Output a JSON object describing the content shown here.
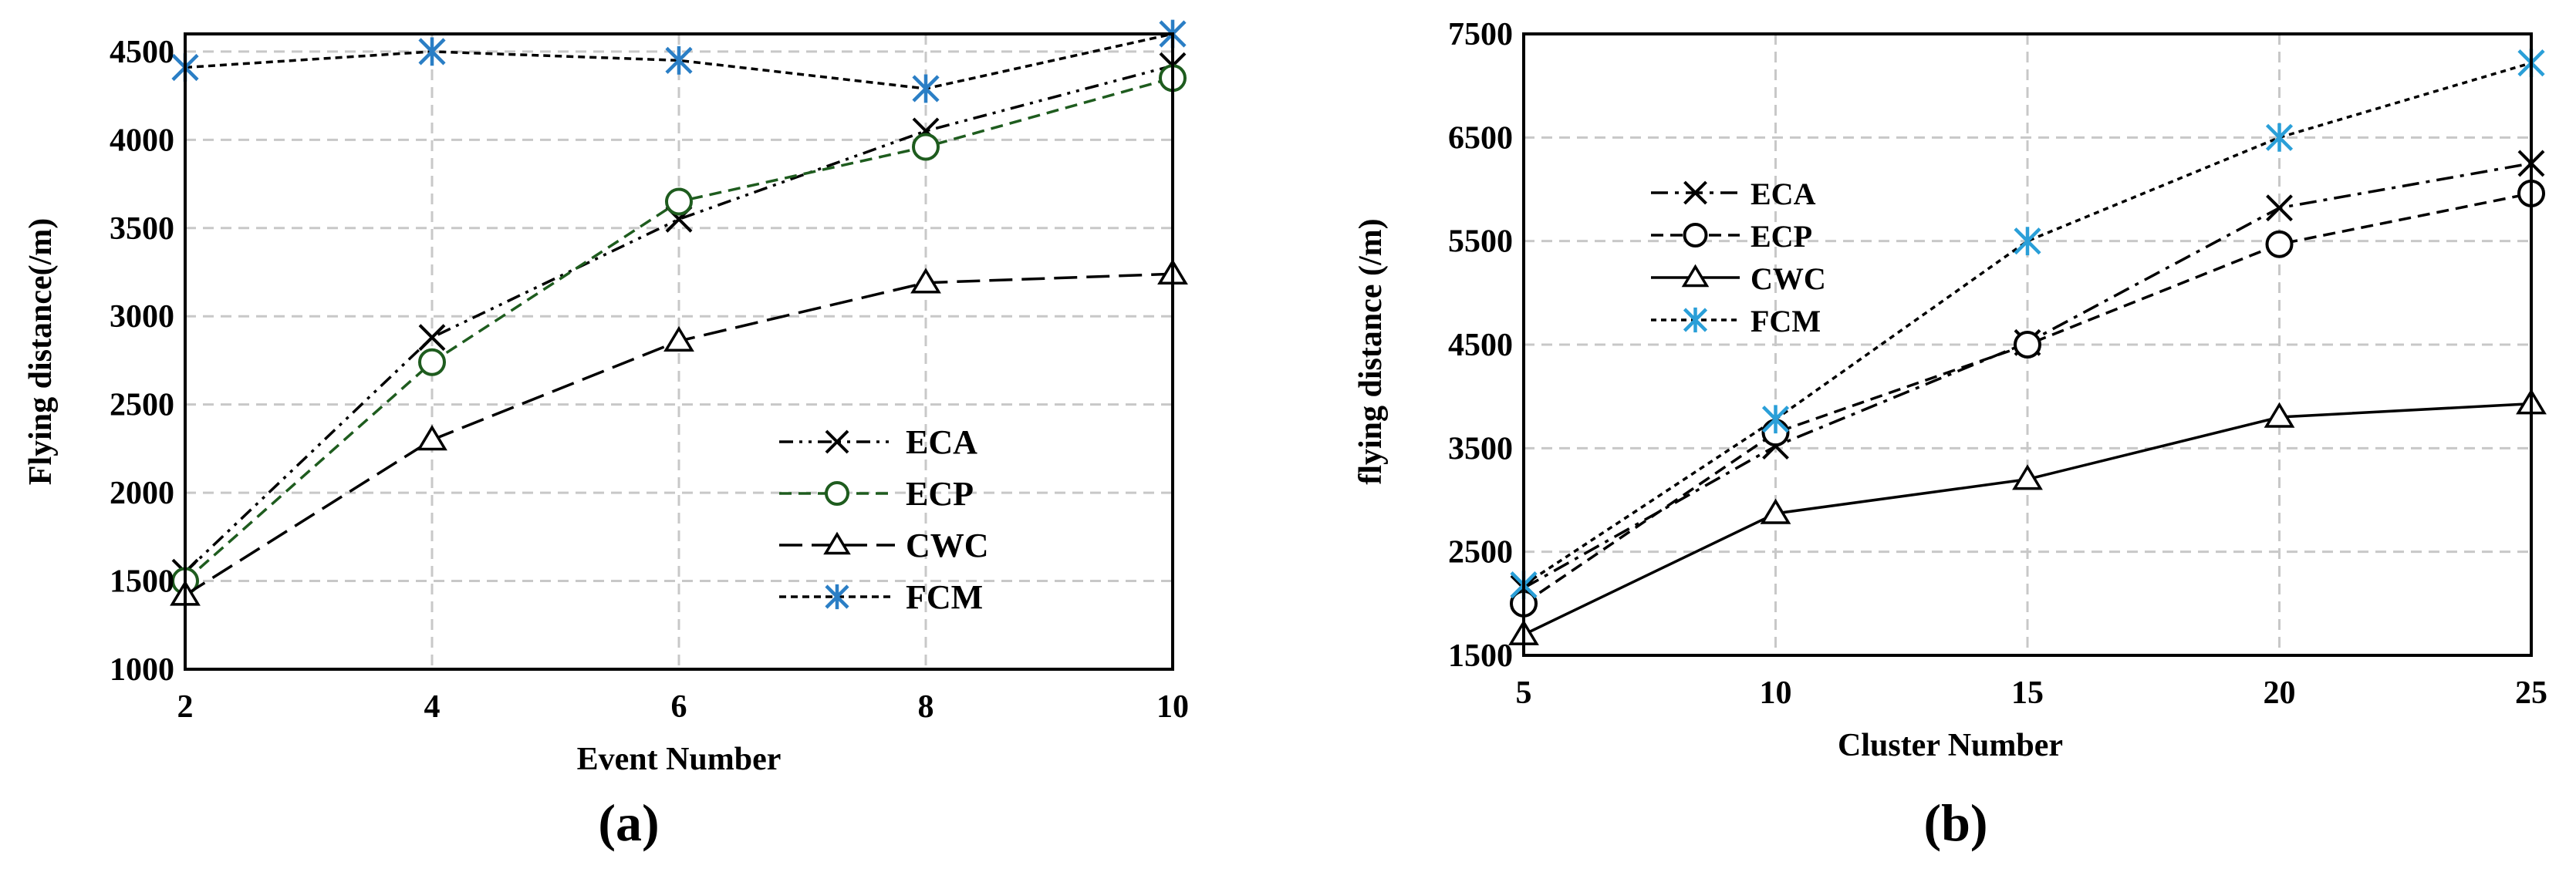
{
  "chart_data": [
    {
      "type": "line",
      "panel_label": "(a)",
      "xlabel": "Event   Number",
      "ylabel": "Flying  distance(/m)",
      "x": [
        2,
        4,
        6,
        8,
        10
      ],
      "xticks": [
        "2",
        "4",
        "6",
        "8",
        "10"
      ],
      "yticks": [
        "1000",
        "1500",
        "2000",
        "2500",
        "3000",
        "3500",
        "4000",
        "4500"
      ],
      "xlim": [
        2,
        10
      ],
      "ylim": [
        1000,
        4600
      ],
      "grid": true,
      "legend_position": "lower-right",
      "series": [
        {
          "name": "ECA",
          "values": [
            1550,
            2880,
            3550,
            4050,
            4420
          ],
          "color": "#000000",
          "marker": "x",
          "dash": "dash-dot-dot"
        },
        {
          "name": "ECP",
          "values": [
            1500,
            2740,
            3650,
            3960,
            4350
          ],
          "color": "#1e5c1e",
          "marker": "circle",
          "dash": "dash"
        },
        {
          "name": "CWC",
          "values": [
            1420,
            2300,
            2860,
            3190,
            3240
          ],
          "color": "#000000",
          "marker": "triangle",
          "dash": "long-dash"
        },
        {
          "name": "FCM",
          "values": [
            4410,
            4500,
            4450,
            4290,
            4600
          ],
          "color": "#000000",
          "marker_color": "#2a7ec5",
          "marker": "asterisk",
          "dash": "short-dash"
        }
      ]
    },
    {
      "type": "line",
      "panel_label": "(b)",
      "xlabel": "Cluster Number",
      "ylabel": "flying distance (/m)",
      "x": [
        5,
        10,
        15,
        20,
        25
      ],
      "xticks": [
        "5",
        "10",
        "15",
        "20",
        "25"
      ],
      "yticks": [
        "1500",
        "2500",
        "3500",
        "4500",
        "5500",
        "6500",
        "7500"
      ],
      "xlim": [
        5,
        25
      ],
      "ylim": [
        1500,
        7500
      ],
      "grid": true,
      "legend_position": "upper-left",
      "series": [
        {
          "name": "ECA",
          "values": [
            2150,
            3520,
            4520,
            5820,
            6250
          ],
          "color": "#000000",
          "marker": "x",
          "dash": "dash-dot"
        },
        {
          "name": "ECP",
          "values": [
            2000,
            3650,
            4500,
            5470,
            5960
          ],
          "color": "#000000",
          "marker": "circle",
          "dash": "dash"
        },
        {
          "name": "CWC",
          "values": [
            1700,
            2870,
            3200,
            3800,
            3930
          ],
          "color": "#000000",
          "marker": "triangle",
          "dash": "solid"
        },
        {
          "name": "FCM",
          "values": [
            2180,
            3780,
            5500,
            6500,
            7220
          ],
          "color": "#000000",
          "marker_color": "#2a9fd8",
          "marker": "asterisk",
          "dash": "dot"
        }
      ]
    }
  ]
}
